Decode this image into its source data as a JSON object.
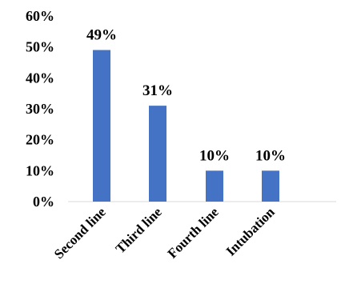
{
  "chart_data": {
    "type": "bar",
    "categories": [
      "Second line",
      "Third line",
      "Fourth line",
      "Intubation"
    ],
    "values": [
      49,
      31,
      10,
      10
    ],
    "data_labels": [
      "49%",
      "31%",
      "10%",
      "10%"
    ],
    "y_tick_labels": [
      "0%",
      "10%",
      "20%",
      "30%",
      "40%",
      "50%",
      "60%"
    ],
    "ylim": [
      0,
      60
    ],
    "title": "",
    "xlabel": "",
    "ylabel": "",
    "grid": false,
    "legend": "none",
    "bar_color": "#4472c4"
  }
}
